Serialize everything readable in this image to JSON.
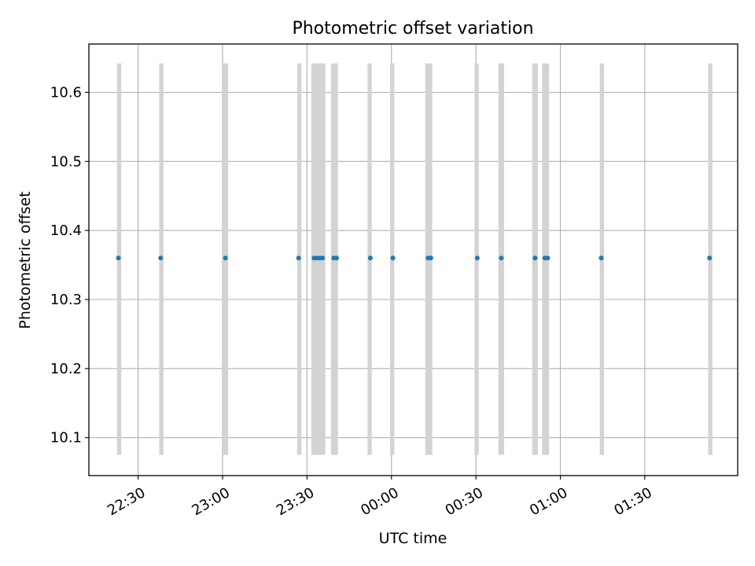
{
  "chart_data": {
    "type": "scatter",
    "title": "Photometric offset variation",
    "xlabel": "UTC time",
    "ylabel": "Photometric offset",
    "x_unit": "UTC time (HH:MM), night spanning midnight",
    "xlim": [
      "22:12:30",
      "02:03:00"
    ],
    "ylim": [
      10.045,
      10.67
    ],
    "xticks": [
      "22:30",
      "23:00",
      "23:30",
      "00:00",
      "00:30",
      "01:00",
      "01:30"
    ],
    "yticks": [
      10.1,
      10.2,
      10.3,
      10.4,
      10.5,
      10.6
    ],
    "grid": true,
    "x_tick_rotation": "angled",
    "series": [
      {
        "type": "scatter",
        "color": "#1f77b4",
        "points": [
          {
            "x": "22:23:00",
            "y": 10.36
          },
          {
            "x": "22:38:00",
            "y": 10.36
          },
          {
            "x": "23:01:00",
            "y": 10.36
          },
          {
            "x": "23:27:00",
            "y": 10.36
          },
          {
            "x": "23:32:30",
            "y": 10.36
          },
          {
            "x": "23:33:30",
            "y": 10.36
          },
          {
            "x": "23:34:30",
            "y": 10.36
          },
          {
            "x": "23:35:30",
            "y": 10.36
          },
          {
            "x": "23:39:30",
            "y": 10.36
          },
          {
            "x": "23:40:30",
            "y": 10.36
          },
          {
            "x": "23:52:30",
            "y": 10.36
          },
          {
            "x": "00:00:30",
            "y": 10.36
          },
          {
            "x": "00:13:00",
            "y": 10.36
          },
          {
            "x": "00:14:00",
            "y": 10.36
          },
          {
            "x": "00:30:30",
            "y": 10.36
          },
          {
            "x": "00:39:00",
            "y": 10.36
          },
          {
            "x": "00:51:00",
            "y": 10.36
          },
          {
            "x": "00:54:30",
            "y": 10.36
          },
          {
            "x": "00:55:30",
            "y": 10.36
          },
          {
            "x": "01:14:30",
            "y": 10.36
          },
          {
            "x": "01:53:00",
            "y": 10.36
          }
        ]
      },
      {
        "type": "vertical-bands",
        "color": "#d3d3d3",
        "ylim": [
          10.075,
          10.642
        ],
        "bands": [
          [
            "22:22:30",
            "22:24:00"
          ],
          [
            "22:37:30",
            "22:39:00"
          ],
          [
            "23:00:00",
            "23:02:00"
          ],
          [
            "23:26:30",
            "23:28:00"
          ],
          [
            "23:31:30",
            "23:36:30"
          ],
          [
            "23:38:30",
            "23:41:00"
          ],
          [
            "23:51:30",
            "23:53:00"
          ],
          [
            "23:59:30",
            "00:01:00"
          ],
          [
            "00:12:00",
            "00:14:30"
          ],
          [
            "00:29:30",
            "00:31:00"
          ],
          [
            "00:38:00",
            "00:40:00"
          ],
          [
            "00:50:00",
            "00:52:00"
          ],
          [
            "00:53:30",
            "00:56:00"
          ],
          [
            "01:14:00",
            "01:15:30"
          ],
          [
            "01:52:30",
            "01:54:00"
          ]
        ]
      }
    ]
  }
}
